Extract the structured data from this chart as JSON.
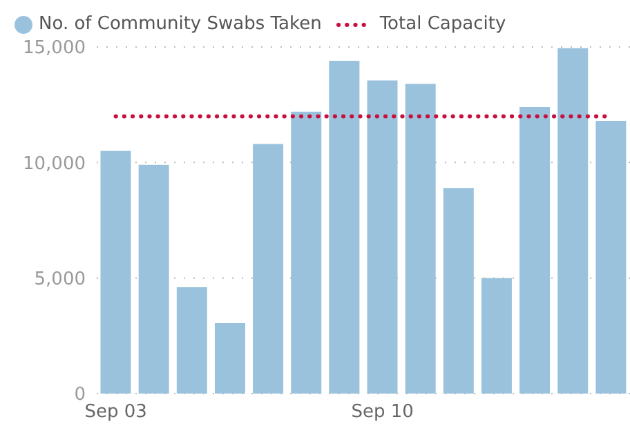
{
  "chart_data": {
    "type": "bar",
    "categories": [
      "Sep 03",
      null,
      null,
      null,
      null,
      null,
      null,
      "Sep 10",
      null,
      null,
      null,
      null,
      null,
      null
    ],
    "series": [
      {
        "name": "No. of Community Swabs Taken",
        "color": "#9bc2dc",
        "values": [
          10500,
          9900,
          4600,
          3050,
          10800,
          12200,
          14400,
          13550,
          13400,
          8900,
          5000,
          12400,
          14950,
          11800
        ]
      },
      {
        "name": "Total Capacity",
        "type": "line",
        "color": "#c8103e",
        "line_style": "dotted",
        "marker": "none",
        "values": [
          12000,
          12000,
          12000,
          12000,
          12000,
          12000,
          12000,
          12000,
          12000,
          12000,
          12000,
          12000,
          12000,
          12000
        ]
      }
    ],
    "ylim": [
      0,
      15000
    ],
    "yticks": [
      {
        "value": 0,
        "label": "0"
      },
      {
        "value": 5000,
        "label": "5,000"
      },
      {
        "value": 10000,
        "label": "10,000"
      },
      {
        "value": 15000,
        "label": "15,000"
      }
    ],
    "grid": "y",
    "legend": "top left"
  }
}
